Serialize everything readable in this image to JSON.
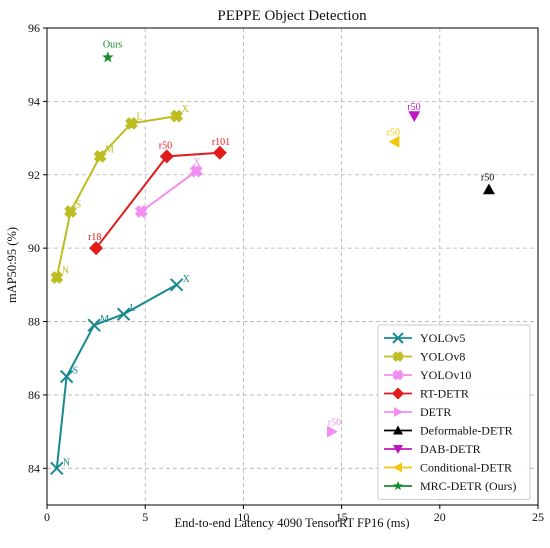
{
  "chart_data": {
    "type": "scatter",
    "title": "PEPPE Object Detection",
    "xlabel": "End-to-end Latency 4090 TensorRT FP16 (ms)",
    "ylabel": "mAP50:95 (%)",
    "xlim": [
      0,
      25
    ],
    "ylim": [
      83,
      96
    ],
    "xticks": [
      0,
      5,
      10,
      15,
      20,
      25
    ],
    "yticks": [
      84,
      86,
      88,
      90,
      92,
      94,
      96
    ],
    "grid": true,
    "legend_position": "lower-right",
    "series": [
      {
        "name": "YOLOv5",
        "color": "#178a8f",
        "marker": "x",
        "line": true,
        "points": [
          {
            "x": 0.5,
            "y": 84.0,
            "label": "N"
          },
          {
            "x": 1.0,
            "y": 86.5,
            "label": "S"
          },
          {
            "x": 2.4,
            "y": 87.9,
            "label": "M"
          },
          {
            "x": 3.9,
            "y": 88.2,
            "label": "L"
          },
          {
            "x": 6.6,
            "y": 89.0,
            "label": "X"
          }
        ]
      },
      {
        "name": "YOLOv8",
        "color": "#bdbd22",
        "marker": "P",
        "line": true,
        "points": [
          {
            "x": 0.5,
            "y": 89.2,
            "label": "N"
          },
          {
            "x": 1.2,
            "y": 91.0,
            "label": "S"
          },
          {
            "x": 2.7,
            "y": 92.5,
            "label": "M"
          },
          {
            "x": 4.3,
            "y": 93.4,
            "label": "L"
          },
          {
            "x": 6.6,
            "y": 93.6,
            "label": "X"
          }
        ]
      },
      {
        "name": "YOLOv10",
        "color": "#f28ef2",
        "marker": "P",
        "line": true,
        "points": [
          {
            "x": 4.8,
            "y": 91.0,
            "label": ""
          },
          {
            "x": 7.6,
            "y": 92.1,
            "label": "X"
          }
        ]
      },
      {
        "name": "RT-DETR",
        "color": "#e21a1a",
        "marker": "D",
        "line": true,
        "points": [
          {
            "x": 2.5,
            "y": 90.0,
            "label": "r18"
          },
          {
            "x": 6.1,
            "y": 92.5,
            "label": "r50"
          },
          {
            "x": 8.8,
            "y": 92.6,
            "label": "r101"
          }
        ]
      },
      {
        "name": "DETR",
        "color": "#f28ef2",
        "marker": "tri-right",
        "line": false,
        "points": [
          {
            "x": 14.5,
            "y": 85.0,
            "label": "r50"
          }
        ]
      },
      {
        "name": "Deformable-DETR",
        "color": "#000000",
        "marker": "tri-up",
        "line": false,
        "points": [
          {
            "x": 22.5,
            "y": 91.6,
            "label": "r50"
          }
        ]
      },
      {
        "name": "DAB-DETR",
        "color": "#bf17bf",
        "marker": "tri-down",
        "line": false,
        "points": [
          {
            "x": 18.7,
            "y": 93.6,
            "label": "r50"
          }
        ]
      },
      {
        "name": "Conditional-DETR",
        "color": "#f2c80f",
        "marker": "tri-left",
        "line": false,
        "points": [
          {
            "x": 17.7,
            "y": 92.9,
            "label": "r50"
          }
        ]
      },
      {
        "name": "MRC-DETR (Ours)",
        "color": "#178a2a",
        "marker": "star",
        "line": false,
        "points": [
          {
            "x": 3.1,
            "y": 95.2,
            "label": "Ours"
          }
        ]
      }
    ]
  }
}
